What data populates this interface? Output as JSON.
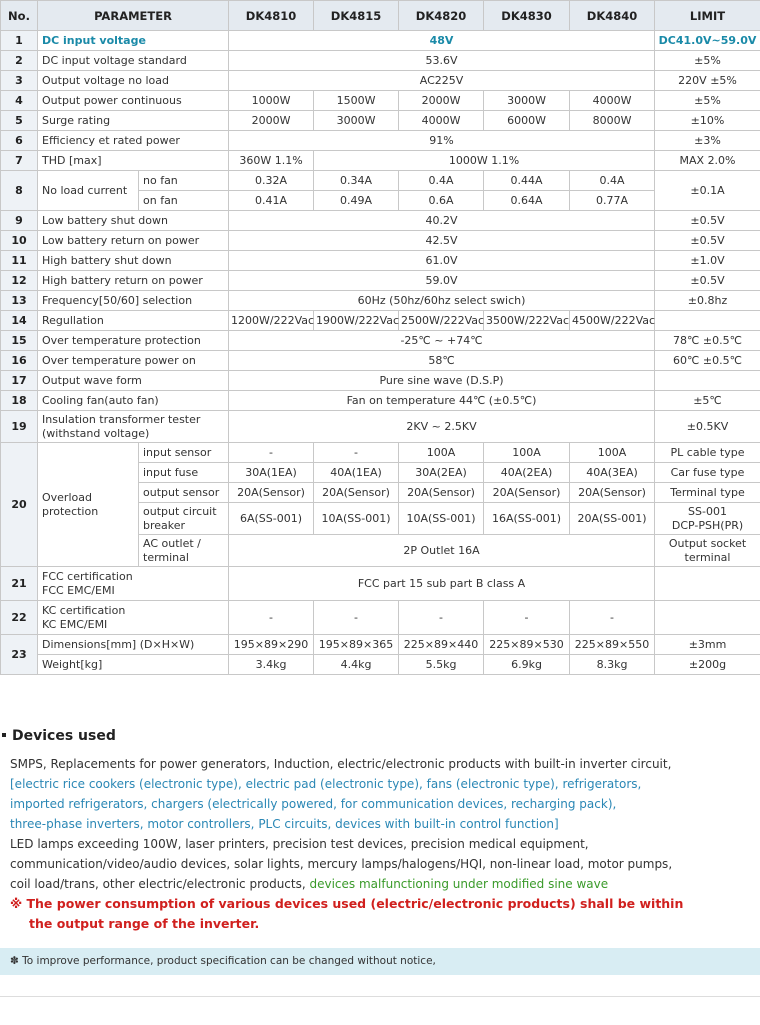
{
  "table": {
    "header": [
      "No.",
      "PARAMETER",
      "DK4810",
      "DK4815",
      "DK4820",
      "DK4830",
      "DK4840",
      "LIMIT"
    ],
    "rows": [
      [
        "1",
        "DC input voltage",
        "48V",
        "DC41.0V~59.0V"
      ],
      [
        "2",
        "DC input voltage standard",
        "53.6V",
        "±5%"
      ],
      [
        "3",
        "Output voltage no load",
        "AC225V",
        "220V ±5%"
      ],
      [
        "4",
        "Output power continuous",
        "1000W",
        "1500W",
        "2000W",
        "3000W",
        "4000W",
        "±5%"
      ],
      [
        "5",
        "Surge rating",
        "2000W",
        "3000W",
        "4000W",
        "6000W",
        "8000W",
        "±10%"
      ],
      [
        "6",
        "Efficiency et rated power",
        "91%",
        "±3%"
      ],
      [
        "7",
        "THD [max]",
        "360W 1.1%",
        "1000W 1.1%",
        "MAX 2.0%"
      ],
      [
        "8",
        "No load current",
        "no fan",
        "0.32A",
        "0.34A",
        "0.4A",
        "0.44A",
        "0.4A",
        "±0.1A"
      ],
      [
        "on fan",
        "0.41A",
        "0.49A",
        "0.6A",
        "0.64A",
        "0.77A"
      ],
      [
        "9",
        "Low battery shut down",
        "40.2V",
        "±0.5V"
      ],
      [
        "10",
        "Low battery return on power",
        "42.5V",
        "±0.5V"
      ],
      [
        "11",
        "High battery shut down",
        "61.0V",
        "±1.0V"
      ],
      [
        "12",
        "High battery return on power",
        "59.0V",
        "±0.5V"
      ],
      [
        "13",
        "Frequency[50/60] selection",
        "60Hz (50hz/60hz select swich)",
        "±0.8hz"
      ],
      [
        "14",
        "Regullation",
        "1200W/222Vac",
        "1900W/222Vac",
        "2500W/222Vac",
        "3500W/222Vac",
        "4500W/222Vac"
      ],
      [
        "15",
        "Over temperature protection",
        "-25℃ ~ +74℃",
        "78℃ ±0.5℃"
      ],
      [
        "16",
        "Over temperature power on",
        "58℃",
        "60℃ ±0.5℃"
      ],
      [
        "17",
        "Output wave form",
        "Pure sine wave (D.S.P)"
      ],
      [
        "18",
        "Cooling fan(auto fan)",
        "Fan on temperature 44℃ (±0.5℃)",
        "±5℃"
      ],
      [
        "19",
        "Insulation transformer tester\n(withstand voltage)",
        "2KV ~ 2.5KV",
        "±0.5KV"
      ],
      [
        "20",
        "Overload\nprotection",
        "input sensor",
        "-",
        "-",
        "100A",
        "100A",
        "100A",
        "PL cable type"
      ],
      [
        "input fuse",
        "30A(1EA)",
        "40A(1EA)",
        "30A(2EA)",
        "40A(2EA)",
        "40A(3EA)",
        "Car fuse type"
      ],
      [
        "output sensor",
        "20A(Sensor)",
        "20A(Sensor)",
        "20A(Sensor)",
        "20A(Sensor)",
        "20A(Sensor)",
        "Terminal type"
      ],
      [
        "output circuit\nbreaker",
        "6A(SS-001)",
        "10A(SS-001)",
        "10A(SS-001)",
        "16A(SS-001)",
        "20A(SS-001)",
        "SS-001\nDCP-PSH(PR)"
      ],
      [
        "AC outlet /\nterminal",
        "2P Outlet 16A",
        "Output socket\nterminal"
      ],
      [
        "21",
        "FCC certification\nFCC EMC/EMI",
        "FCC part 15 sub part B class A"
      ],
      [
        "22",
        "KC certification\nKC EMC/EMI",
        "-",
        "-",
        "-",
        "-",
        "-"
      ],
      [
        "23",
        "Dimensions[mm] (D×H×W)",
        "195×89×290",
        "195×89×365",
        "225×89×440",
        "225×89×530",
        "225×89×550",
        "±3mm"
      ],
      [
        "Weight[kg]",
        "3.4kg",
        "4.4kg",
        "5.5kg",
        "6.9kg",
        "8.3kg",
        "±200g"
      ]
    ]
  },
  "devices": {
    "title": "Devices used",
    "intro": "SMPS, Replacements for power generators, Induction, electric/electronic products with built-in inverter circuit,",
    "examples": [
      "[electric rice cookers (electronic type), electric pad (electronic type), fans (electronic type), refrigerators,",
      "imported refrigerators, chargers (electrically powered, for communication devices, recharging pack),",
      "three-phase inverters, motor controllers, PLC circuits, devices with built-in control function]"
    ],
    "others": [
      "LED lamps exceeding 100W, laser printers, precision test devices, precision medical equipment,",
      "communication/video/audio devices, solar lights, mercury lamps/halogens/HQI, non-linear load, motor pumps,",
      "coil load/trans, other electric/electronic products,"
    ],
    "malfunction": "devices malfunctioning under modified sine wave",
    "warning": [
      "※ The power consumption of various devices used (electric/electronic products) shall be within",
      "the output range of the inverter."
    ]
  },
  "footer": {
    "note": "✽ To improve performance, product specification can be changed without notice,"
  }
}
